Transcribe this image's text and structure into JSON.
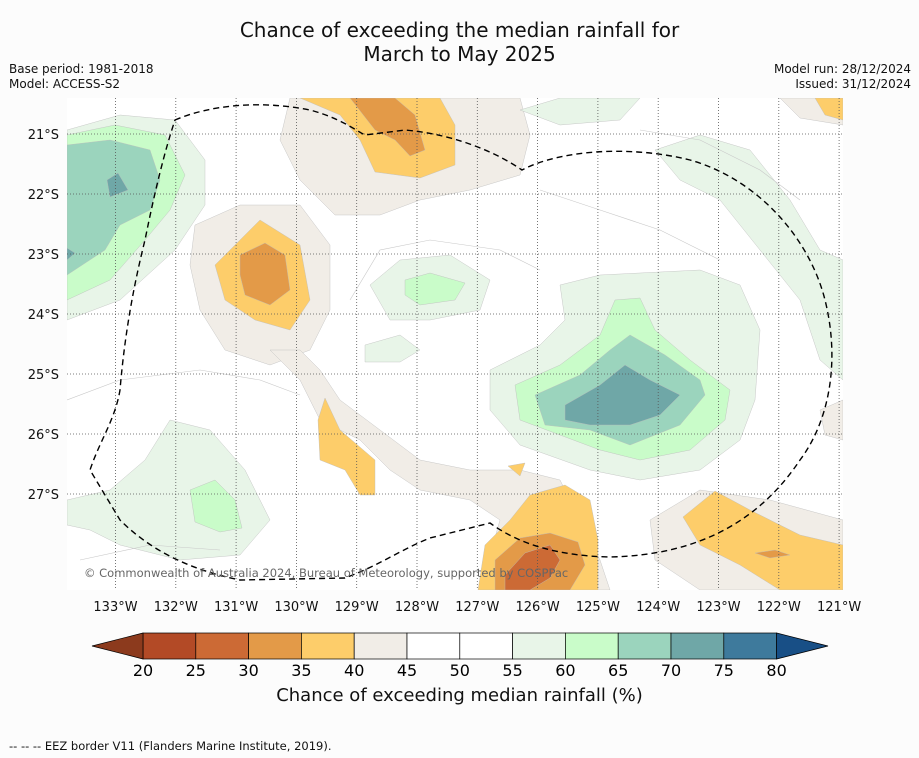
{
  "header": {
    "title_line1": "Chance of exceeding the median rainfall for",
    "title_line2": "March to May 2025",
    "base_period": "Base period: 1981-2018",
    "model": "Model: ACCESS-S2",
    "model_run": "Model run: 28/12/2024",
    "issued": "Issued: 31/12/2024"
  },
  "map": {
    "lon_labels": [
      "133°W",
      "132°W",
      "131°W",
      "130°W",
      "129°W",
      "128°W",
      "127°W",
      "126°W",
      "125°W",
      "124°W",
      "123°W",
      "122°W",
      "121°W"
    ],
    "lat_labels": [
      "21°S",
      "22°S",
      "23°S",
      "24°S",
      "25°S",
      "26°S",
      "27°S"
    ],
    "copyright": "© Commonwealth of Australia 2024, Bureau of Meteorology, supported by COSPPac",
    "grid": true
  },
  "colorbar": {
    "ticks": [
      "20",
      "25",
      "30",
      "35",
      "40",
      "45",
      "50",
      "55",
      "60",
      "65",
      "70",
      "75",
      "80"
    ],
    "colors": [
      "#b34a26",
      "#cc6a35",
      "#e39a48",
      "#fdcd6a",
      "#f1ede7",
      "#ffffff",
      "#ffffff",
      "#e8f5e8",
      "#c9fcc9",
      "#9bd4bd",
      "#6fa7a7",
      "#3e7a9c"
    ],
    "under_color": "#8c3a1d",
    "over_color": "#184f86",
    "label": "Chance of exceeding median rainfall (%)"
  },
  "legend": {
    "eez": "--  --  -- EEZ border V11 (Flanders Marine Institute, 2019)."
  },
  "colors": {
    "c35_40": "#fdcd6a",
    "c30_35": "#e39a48",
    "c25_30": "#cc6a35",
    "c40_45": "#f1ede7",
    "c55_60": "#e8f5e8",
    "c60_65": "#c9fcc9",
    "c65_70": "#9bd4bd",
    "c70_75": "#6fa7a7",
    "c75_80": "#3e7a9c"
  }
}
